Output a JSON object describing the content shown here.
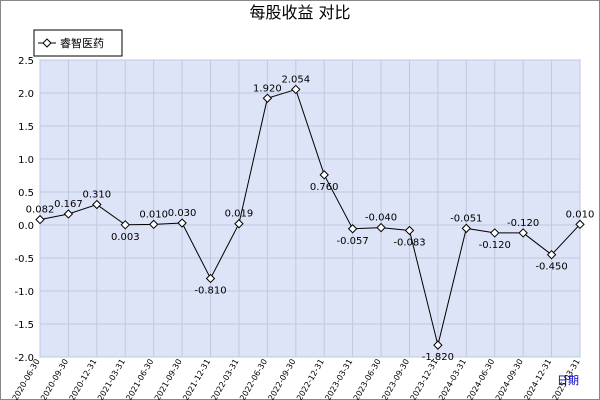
{
  "chart_data": {
    "type": "line",
    "title": "每股收益 对比",
    "x_label": "日期",
    "categories": [
      "2020-06-30",
      "2020-09-30",
      "2020-12-31",
      "2021-03-31",
      "2021-06-30",
      "2021-09-30",
      "2021-12-31",
      "2022-03-31",
      "2022-06-30",
      "2022-09-30",
      "2022-12-31",
      "2023-03-31",
      "2023-06-30",
      "2023-09-30",
      "2023-12-31",
      "2024-03-31",
      "2024-06-30",
      "2024-09-30",
      "2024-12-31",
      "2025-03-31"
    ],
    "series": [
      {
        "name": "睿智医药",
        "color": "#000000",
        "values": [
          0.082,
          0.167,
          0.31,
          0.003,
          0.01,
          0.03,
          -0.81,
          0.019,
          1.92,
          2.054,
          0.76,
          -0.057,
          -0.04,
          -0.083,
          -1.82,
          -0.051,
          -0.12,
          -0.12,
          -0.45,
          0.01
        ],
        "value_labels": [
          "0.082",
          "0.167",
          "0.310",
          "0.003",
          "0.010",
          "0.030",
          "-0.810",
          "0.019",
          "1.920",
          "2.054",
          "0.760",
          "-0.057",
          "-0.040",
          "-0.083",
          "-1.820",
          "-0.051",
          "-0.120",
          "-0.120",
          "-0.450",
          "0.010"
        ]
      }
    ],
    "ylim": [
      -2,
      2.5
    ],
    "yticks": [
      {
        "value": -2,
        "label": "-2.0"
      },
      {
        "value": -1.5,
        "label": "-1.5"
      },
      {
        "value": -1,
        "label": "-1.0"
      },
      -0.5,
      {
        "value": 0,
        "label": "0.0"
      },
      0.5,
      {
        "value": 1,
        "label": "1.0"
      },
      1.5,
      {
        "value": 2,
        "label": "2.0"
      },
      2.5
    ],
    "grid": true,
    "legend": "top-left"
  }
}
